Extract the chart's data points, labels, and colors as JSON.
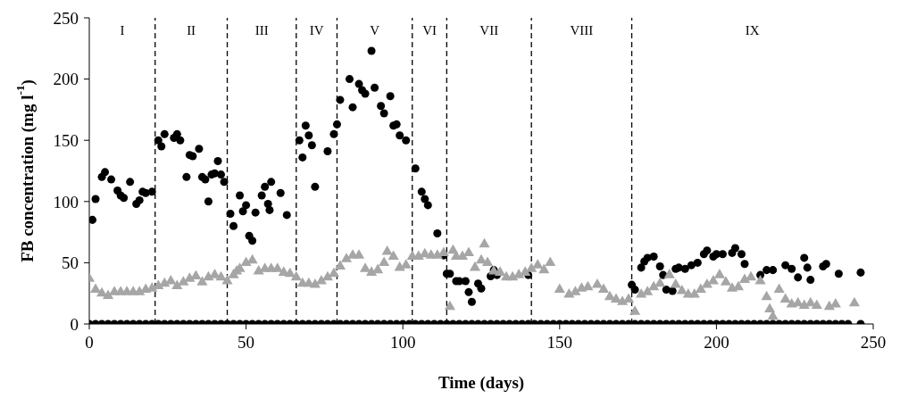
{
  "chart_data": {
    "type": "scatter",
    "xlabel": "Time (days)",
    "ylabel": "FB concentration (mg l$^{-1}$)",
    "xlim": [
      0,
      250
    ],
    "xticks": [
      0,
      50,
      100,
      150,
      200,
      250
    ],
    "ylim": [
      0,
      250
    ],
    "yticks": [
      0,
      50,
      100,
      150,
      200,
      250
    ],
    "grid": false,
    "legend": false,
    "series": [
      {
        "color": "#000000",
        "marker": "circle",
        "x": [
          1,
          2,
          4,
          5,
          7,
          9,
          10,
          11,
          13,
          15,
          16,
          17,
          18,
          20,
          22,
          23,
          24,
          27,
          28,
          29,
          31,
          32,
          33,
          35,
          36,
          37,
          38,
          39,
          40,
          41,
          42,
          43,
          45,
          46,
          48,
          49,
          50,
          51,
          52,
          53,
          55,
          56,
          57,
          57.5,
          58,
          61,
          63,
          67,
          68,
          69,
          70,
          71,
          72,
          76,
          78,
          79,
          80,
          83,
          84,
          86,
          87,
          88,
          90,
          91,
          93,
          94,
          96,
          97,
          98,
          99,
          101,
          104,
          106,
          107,
          108,
          111,
          113,
          114,
          115,
          117,
          118,
          120,
          121,
          122,
          124,
          125,
          128,
          129,
          130,
          140,
          173,
          174,
          176,
          177,
          178,
          180,
          182,
          183,
          184,
          186,
          187,
          188,
          190,
          192,
          194,
          196,
          197,
          199,
          200,
          202,
          205,
          206,
          208,
          209,
          214,
          216,
          218,
          222,
          224,
          226,
          228,
          229,
          230,
          234,
          235,
          239,
          246
        ],
        "values": [
          85,
          102,
          120,
          124,
          118,
          109,
          105,
          103,
          116,
          98,
          101,
          108,
          107,
          108,
          150,
          145,
          155,
          152,
          155,
          150,
          120,
          138,
          137,
          143,
          120,
          118,
          100,
          122,
          123,
          133,
          122,
          116,
          90,
          80,
          105,
          92,
          97,
          72,
          68,
          91,
          105,
          112,
          98,
          93,
          116,
          107,
          89,
          150,
          136,
          162,
          154,
          146,
          112,
          141,
          155,
          163,
          183,
          200,
          177,
          196,
          191,
          188,
          223,
          193,
          178,
          172,
          186,
          162,
          163,
          154,
          150,
          127,
          108,
          102,
          97,
          74,
          56,
          41,
          41,
          35,
          35,
          35,
          26,
          18,
          33,
          29,
          39,
          44,
          40,
          40,
          32,
          28,
          46,
          51,
          54,
          55,
          47,
          40,
          28,
          27,
          45,
          46,
          45,
          48,
          50,
          57,
          60,
          55,
          57,
          57,
          58,
          62,
          57,
          49,
          40,
          44,
          44,
          48,
          45,
          38,
          54,
          46,
          36,
          47,
          49,
          41,
          42
        ]
      },
      {
        "color": "#a6a6a6",
        "marker": "triangle",
        "x": [
          0,
          2,
          4,
          6,
          8,
          10,
          12,
          14,
          16,
          18,
          20,
          22,
          24,
          26,
          28,
          30,
          32,
          34,
          36,
          38,
          40,
          42,
          44,
          46,
          47,
          48,
          50,
          52,
          54,
          56,
          58,
          60,
          62,
          64,
          66,
          68,
          70,
          72,
          74,
          76,
          78,
          80,
          82,
          84,
          86,
          88,
          90,
          92,
          94,
          95,
          97,
          99,
          101,
          103,
          105,
          107,
          109,
          111,
          113,
          115,
          116,
          117,
          119,
          121,
          123,
          125,
          126,
          127,
          129,
          131,
          133,
          135,
          137,
          139,
          141,
          143,
          145,
          147,
          150,
          153,
          155,
          157,
          159,
          162,
          164,
          166,
          168,
          170,
          172,
          174,
          176,
          178,
          180,
          182,
          185,
          187,
          189,
          191,
          193,
          195,
          197,
          199,
          201,
          203,
          205,
          207,
          209,
          211,
          214,
          216,
          217,
          218,
          220,
          222,
          224,
          226,
          228,
          230,
          232,
          236,
          238,
          244
        ],
        "values": [
          37,
          28,
          25,
          23,
          26,
          26,
          26,
          26,
          26,
          28,
          29,
          31,
          33,
          35,
          31,
          34,
          37,
          39,
          34,
          38,
          40,
          38,
          35,
          40,
          43,
          45,
          50,
          52,
          43,
          45,
          45,
          45,
          42,
          41,
          38,
          33,
          33,
          32,
          35,
          38,
          41,
          47,
          53,
          56,
          56,
          45,
          42,
          44,
          50,
          59,
          55,
          46,
          48,
          55,
          55,
          57,
          56,
          56,
          58,
          14,
          60,
          55,
          55,
          58,
          46,
          52,
          65,
          50,
          43,
          42,
          38,
          38,
          40,
          42,
          45,
          48,
          44,
          50,
          28,
          24,
          26,
          29,
          30,
          32,
          28,
          22,
          20,
          18,
          20,
          10,
          24,
          26,
          30,
          33,
          40,
          32,
          27,
          24,
          24,
          28,
          32,
          35,
          40,
          34,
          29,
          30,
          36,
          38,
          35,
          22,
          12,
          6,
          28,
          20,
          16,
          17,
          15,
          17,
          15,
          14,
          16,
          17
        ]
      },
      {
        "color": "#000000",
        "marker": "circle",
        "x": [
          0,
          2,
          4,
          6,
          8,
          10,
          12,
          14,
          16,
          18,
          20,
          22,
          24,
          26,
          28,
          30,
          32,
          34,
          36,
          38,
          40,
          42,
          44,
          46,
          48,
          50,
          52,
          54,
          56,
          58,
          60,
          62,
          64,
          66,
          68,
          70,
          72,
          74,
          76,
          78,
          80,
          82,
          84,
          86,
          88,
          90,
          92,
          94,
          96,
          98,
          100,
          102,
          104,
          106,
          108,
          110,
          112,
          114,
          116,
          118,
          120,
          122,
          124,
          126,
          128,
          130,
          132,
          134,
          136,
          138,
          140,
          142,
          144,
          146,
          148,
          150,
          152,
          154,
          156,
          158,
          160,
          162,
          164,
          166,
          168,
          170,
          172,
          174,
          176,
          178,
          180,
          182,
          184,
          186,
          188,
          190,
          192,
          194,
          196,
          198,
          200,
          202,
          204,
          206,
          208,
          210,
          212,
          214,
          216,
          218,
          220,
          222,
          224,
          226,
          228,
          230,
          232,
          234,
          236,
          238,
          240,
          242,
          246
        ],
        "values": [
          0,
          0,
          0,
          0,
          0,
          0,
          0,
          0,
          0,
          0,
          0,
          0,
          0,
          0,
          0,
          0,
          0,
          0,
          0,
          0,
          0,
          0,
          0,
          0,
          0,
          0,
          0,
          0,
          0,
          0,
          0,
          0,
          0,
          0,
          0,
          0,
          0,
          0,
          0,
          0,
          0,
          0,
          0,
          0,
          0,
          0,
          0,
          0,
          0,
          0,
          0,
          0,
          0,
          0,
          0,
          0,
          0,
          0,
          0,
          0,
          0,
          0,
          0,
          0,
          0,
          0,
          0,
          0,
          0,
          0,
          0,
          0,
          0,
          0,
          0,
          0,
          0,
          0,
          0,
          0,
          0,
          0,
          0,
          0,
          0,
          0,
          0,
          0,
          0,
          0,
          0,
          0,
          0,
          0,
          0,
          0,
          0,
          0,
          0,
          0,
          0,
          0,
          0,
          0,
          0,
          0,
          0,
          0,
          0,
          0,
          0,
          0,
          0,
          0,
          0,
          0,
          0,
          0,
          0,
          0,
          0,
          0,
          0
        ]
      }
    ],
    "ref_lines": [
      {
        "axis": "x",
        "value": 21,
        "line_style": "dashed",
        "color": "#000000"
      },
      {
        "axis": "x",
        "value": 44,
        "line_style": "dashed",
        "color": "#000000"
      },
      {
        "axis": "x",
        "value": 66,
        "line_style": "dashed",
        "color": "#000000"
      },
      {
        "axis": "x",
        "value": 79,
        "line_style": "dashed",
        "color": "#000000"
      },
      {
        "axis": "x",
        "value": 103,
        "line_style": "dashed",
        "color": "#000000"
      },
      {
        "axis": "x",
        "value": 114,
        "line_style": "dashed",
        "color": "#000000"
      },
      {
        "axis": "x",
        "value": 141,
        "line_style": "dashed",
        "color": "#000000"
      },
      {
        "axis": "x",
        "value": 173,
        "line_style": "dashed",
        "color": "#000000"
      }
    ],
    "annotations": [
      "I",
      "II",
      "III",
      "IV",
      "V",
      "VI",
      "VII",
      "VIII",
      "IX"
    ]
  }
}
